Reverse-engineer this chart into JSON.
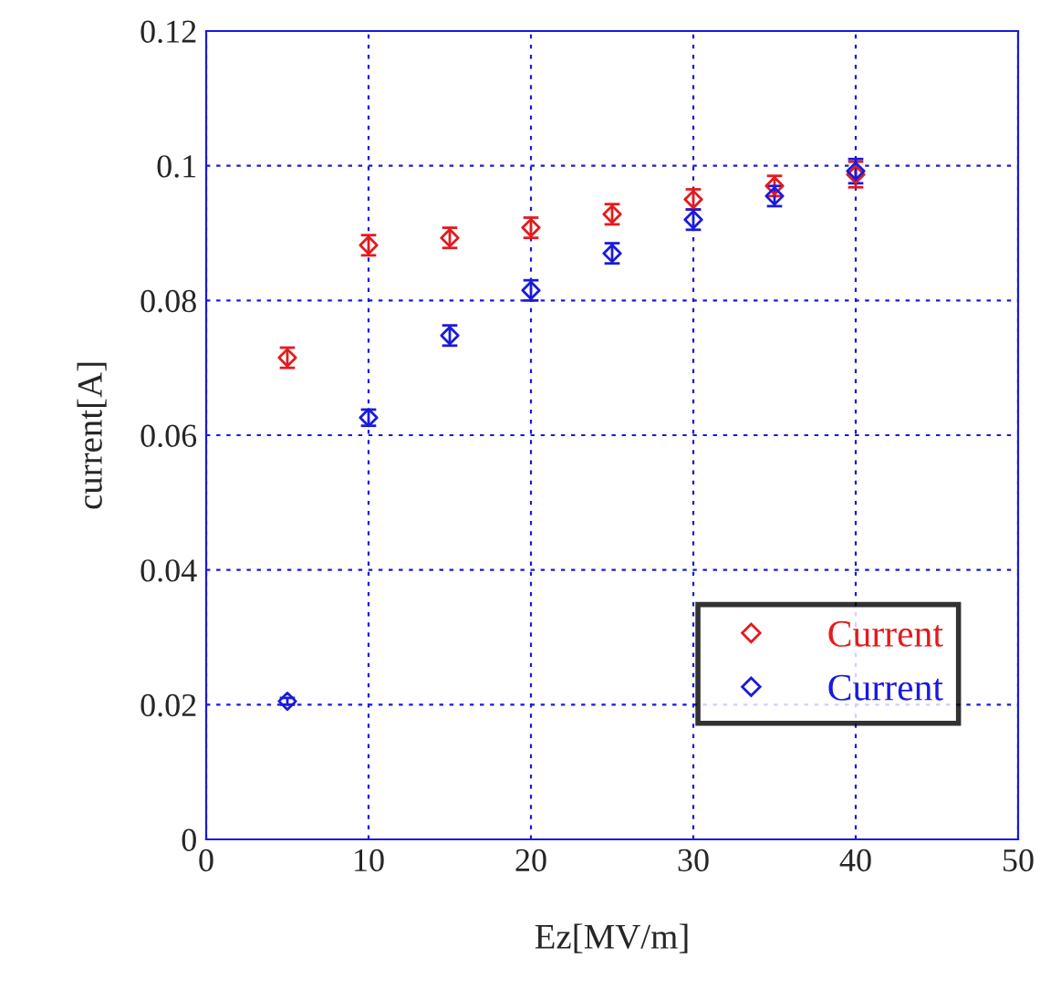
{
  "chart_data": {
    "type": "scatter",
    "xlabel": "Ez[MV/m]",
    "ylabel": "current[A]",
    "x": [
      5,
      10,
      15,
      20,
      25,
      30,
      35,
      40
    ],
    "series": [
      {
        "name": "Current",
        "color": "#e41a1c",
        "values": [
          0.0715,
          0.0882,
          0.0893,
          0.0908,
          0.0928,
          0.095,
          0.097,
          0.0987
        ],
        "errors": [
          0.0015,
          0.0015,
          0.0015,
          0.0015,
          0.0015,
          0.0015,
          0.0015,
          0.0019
        ]
      },
      {
        "name": "Current",
        "color": "#1a1adc",
        "values": [
          0.0205,
          0.0626,
          0.0748,
          0.0815,
          0.087,
          0.092,
          0.0955,
          0.0992
        ],
        "errors": [
          0.0005,
          0.0012,
          0.0015,
          0.0015,
          0.0015,
          0.0015,
          0.0015,
          0.0018
        ]
      }
    ],
    "xlim": [
      0,
      50
    ],
    "ylim": [
      0,
      0.12
    ],
    "xticks": [
      0,
      10,
      20,
      30,
      40,
      50
    ],
    "yticks": [
      0,
      0.02,
      0.04,
      0.06,
      0.08,
      0.1,
      0.12
    ],
    "grid": true,
    "legend": "bottom right",
    "marker": "diamond"
  }
}
